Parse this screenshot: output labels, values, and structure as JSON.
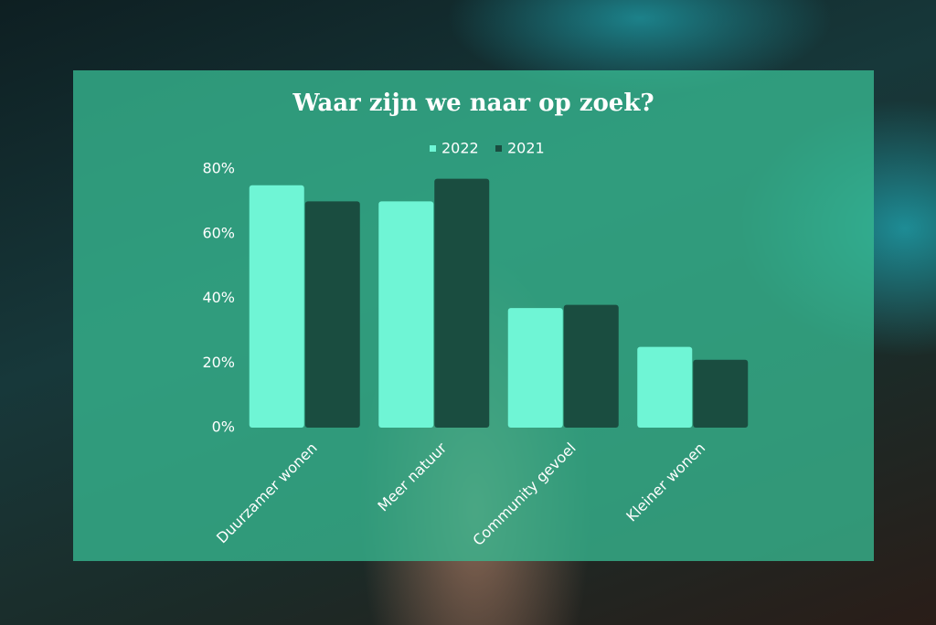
{
  "chart_data": {
    "type": "bar",
    "title": "Waar zijn we naar op zoek?",
    "categories": [
      "Duurzamer wonen",
      "Meer natuur",
      "Community gevoel",
      "Kleiner wonen"
    ],
    "series": [
      {
        "name": "2022",
        "color": "#6ff5d5",
        "values": [
          75,
          70,
          37,
          25
        ]
      },
      {
        "name": "2021",
        "color": "#1a4d40",
        "values": [
          70,
          77,
          38,
          21
        ]
      }
    ],
    "ylim": [
      0,
      80
    ],
    "yticks": [
      {
        "value": 0,
        "label": "0%"
      },
      {
        "value": 20,
        "label": "20%"
      },
      {
        "value": 40,
        "label": "40%"
      },
      {
        "value": 60,
        "label": "60%"
      },
      {
        "value": 80,
        "label": "80%"
      }
    ],
    "grid": false
  }
}
